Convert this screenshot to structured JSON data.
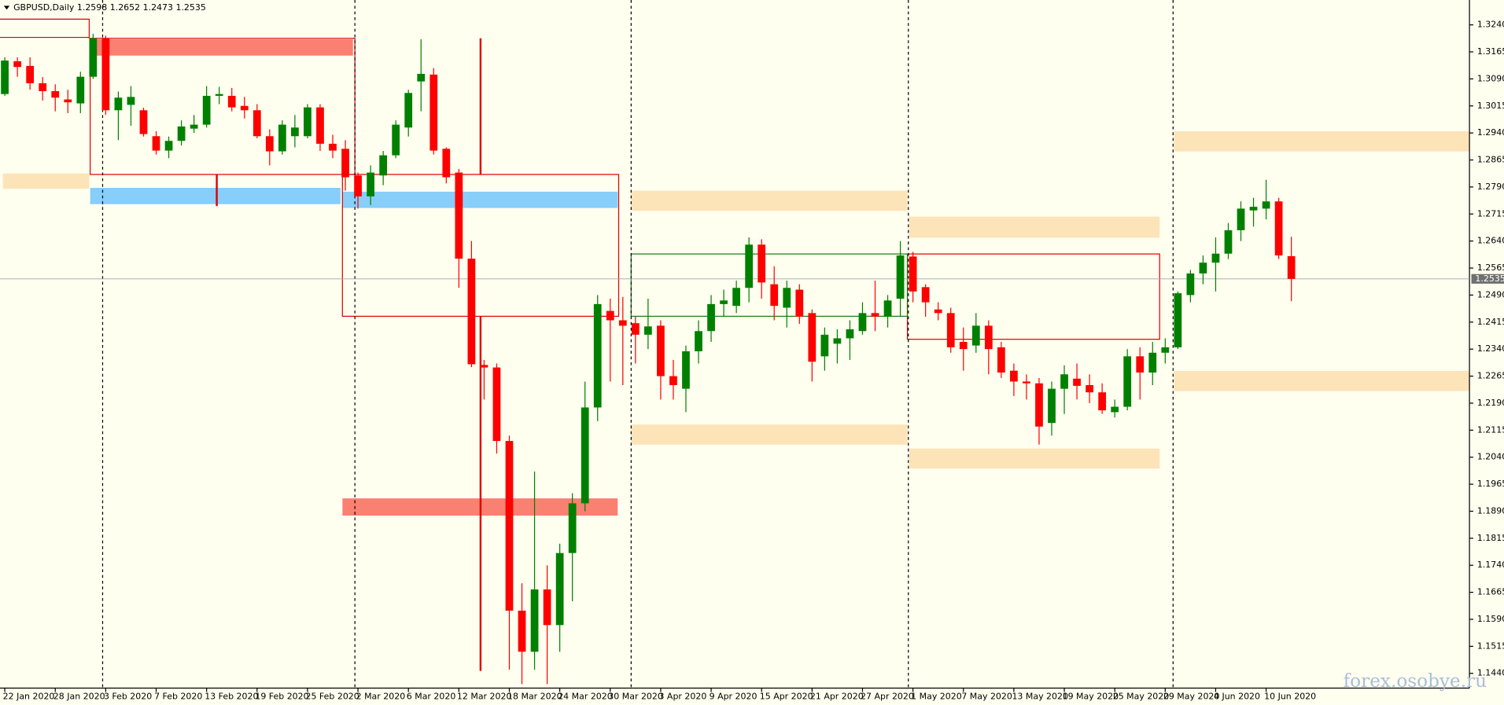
{
  "chart_data": {
    "type": "candlestick",
    "title": "GBPUSD,Daily  1.2598 1.2652 1.2473 1.2535",
    "watermark": "forex.osobye.ru",
    "categories": [
      "22 Jan 2020",
      null,
      null,
      null,
      "28 Jan 2020",
      null,
      null,
      null,
      "3 Feb 2020",
      null,
      null,
      null,
      "7 Feb 2020",
      null,
      null,
      null,
      "13 Feb 2020",
      null,
      null,
      null,
      "19 Feb 2020",
      null,
      null,
      null,
      "25 Feb 2020",
      null,
      null,
      null,
      "2 Mar 2020",
      null,
      null,
      null,
      "6 Mar 2020",
      null,
      null,
      null,
      "12 Mar 2020",
      null,
      null,
      null,
      "18 Mar 2020",
      null,
      null,
      null,
      "24 Mar 2020",
      null,
      null,
      null,
      "30 Mar 2020",
      null,
      null,
      null,
      "3 Apr 2020",
      null,
      null,
      null,
      "9 Apr 2020",
      null,
      null,
      null,
      "15 Apr 2020",
      null,
      null,
      null,
      "21 Apr 2020",
      null,
      null,
      null,
      "27 Apr 2020",
      null,
      null,
      null,
      "1 May 2020",
      null,
      null,
      null,
      "7 May 2020",
      null,
      null,
      null,
      "13 May 2020",
      null,
      null,
      null,
      "19 May 2020",
      null,
      null,
      null,
      "25 May 2020",
      null,
      null,
      null,
      "29 May 2020",
      null,
      null,
      null,
      "4 Jun 2020",
      null,
      null,
      null,
      "10 Jun 2020",
      null,
      null
    ],
    "open": [
      1.3048,
      1.3139,
      1.3126,
      1.3078,
      1.3056,
      1.3033,
      1.3022,
      1.3096,
      1.3203,
      1.3003,
      1.3018,
      1.3003,
      1.2931,
      1.2891,
      1.2918,
      1.2952,
      1.2963,
      1.3043,
      1.3043,
      1.3015,
      1.3003,
      1.2931,
      1.2889,
      1.2931,
      1.2931,
      1.3011,
      1.291,
      1.2896,
      1.2822,
      1.2764,
      1.2822,
      1.2878,
      1.2955,
      1.3083,
      1.3102,
      1.2896,
      1.283,
      1.2591,
      1.2296,
      1.2289,
      1.2085,
      1.1614,
      1.15,
      1.1673,
      1.1574,
      1.1774,
      1.1912,
      1.2178,
      1.2446,
      1.242,
      1.2412,
      1.238,
      1.2405,
      1.2265,
      1.223,
      1.2334,
      1.239,
      1.2465,
      1.246,
      1.251,
      1.263,
      1.252,
      1.2455,
      1.2505,
      1.244,
      1.232,
      1.2355,
      1.237,
      1.239,
      1.244,
      1.243,
      1.248,
      1.2597,
      1.2512,
      1.245,
      1.244,
      1.236,
      1.235,
      1.2405,
      1.2345,
      1.228,
      1.225,
      1.2245,
      1.2135,
      1.223,
      1.2258,
      1.224,
      1.222,
      1.2165,
      1.218,
      1.232,
      1.2275,
      1.233,
      1.2345,
      1.249,
      1.255,
      1.258,
      1.2605,
      1.267,
      1.2725,
      1.273,
      1.275,
      1.2598
    ],
    "high": [
      1.315,
      1.315,
      1.315,
      1.3095,
      1.3075,
      1.306,
      1.311,
      1.3215,
      1.321,
      1.3055,
      1.307,
      1.301,
      1.2945,
      1.293,
      1.2975,
      1.299,
      1.307,
      1.3068,
      1.3065,
      1.304,
      1.302,
      1.295,
      1.2975,
      1.299,
      1.302,
      1.302,
      1.2935,
      1.292,
      1.283,
      1.285,
      1.289,
      1.2975,
      1.306,
      1.32,
      1.312,
      1.29,
      1.284,
      1.264,
      1.231,
      1.23,
      1.21,
      1.169,
      1.2,
      1.174,
      1.18,
      1.194,
      1.225,
      1.249,
      1.248,
      1.2485,
      1.243,
      1.248,
      1.242,
      1.231,
      1.235,
      1.242,
      1.249,
      1.2505,
      1.253,
      1.265,
      1.2645,
      1.257,
      1.253,
      1.252,
      1.245,
      1.24,
      1.2395,
      1.242,
      1.247,
      1.253,
      1.249,
      1.264,
      1.261,
      1.252,
      1.247,
      1.2455,
      1.24,
      1.244,
      1.242,
      1.236,
      1.23,
      1.227,
      1.226,
      1.225,
      1.2295,
      1.23,
      1.227,
      1.2245,
      1.22,
      1.234,
      1.2345,
      1.236,
      1.237,
      1.25,
      1.256,
      1.26,
      1.265,
      1.269,
      1.275,
      1.276,
      1.281,
      1.276,
      1.2652
    ],
    "low": [
      1.3043,
      1.3096,
      1.306,
      1.303,
      1.3,
      1.2995,
      1.2995,
      1.309,
      1.299,
      1.292,
      1.296,
      1.293,
      1.288,
      1.287,
      1.2905,
      1.294,
      1.2955,
      1.302,
      1.3,
      1.298,
      1.2925,
      1.285,
      1.288,
      1.29,
      1.2925,
      1.289,
      1.287,
      1.278,
      1.273,
      1.274,
      1.2795,
      1.287,
      1.293,
      1.3,
      1.288,
      1.28,
      1.251,
      1.229,
      1.22,
      1.205,
      1.145,
      1.141,
      1.145,
      1.141,
      1.15,
      1.164,
      1.189,
      1.214,
      1.225,
      1.224,
      1.23,
      1.234,
      1.22,
      1.22,
      1.2165,
      1.23,
      1.236,
      1.243,
      1.244,
      1.247,
      1.248,
      1.242,
      1.24,
      1.241,
      1.225,
      1.228,
      1.23,
      1.231,
      1.238,
      1.239,
      1.24,
      1.243,
      1.247,
      1.243,
      1.242,
      1.233,
      1.228,
      1.233,
      1.227,
      1.226,
      1.221,
      1.22,
      1.2075,
      1.21,
      1.216,
      1.22,
      1.219,
      1.216,
      1.215,
      1.217,
      1.22,
      1.224,
      1.23,
      1.234,
      1.247,
      1.252,
      1.25,
      1.259,
      1.264,
      1.268,
      1.27,
      1.259,
      1.2473
    ],
    "close": [
      1.3141,
      1.3123,
      1.3078,
      1.3056,
      1.3038,
      1.3025,
      1.3096,
      1.3203,
      1.3003,
      1.3038,
      1.304,
      1.2937,
      1.2891,
      1.2918,
      1.2958,
      1.2963,
      1.3043,
      1.3048,
      1.3011,
      1.3003,
      1.2931,
      1.2889,
      1.2963,
      1.2955,
      1.3011,
      1.291,
      1.2891,
      1.2817,
      1.2764,
      1.283,
      1.2878,
      1.2963,
      1.3051,
      1.3104,
      1.2891,
      1.2817,
      1.2591,
      1.2298,
      1.2289,
      1.2085,
      1.1614,
      1.15,
      1.1673,
      1.1574,
      1.1774,
      1.1912,
      1.2178,
      1.2465,
      1.242,
      1.2405,
      1.238,
      1.2403,
      1.2265,
      1.224,
      1.2334,
      1.239,
      1.2465,
      1.2475,
      1.251,
      1.263,
      1.2525,
      1.246,
      1.251,
      1.243,
      1.2305,
      1.238,
      1.237,
      1.2395,
      1.244,
      1.243,
      1.2475,
      1.26,
      1.25,
      1.247,
      1.244,
      1.2345,
      1.234,
      1.2405,
      1.234,
      1.2275,
      1.225,
      1.2245,
      1.2125,
      1.223,
      1.227,
      1.2238,
      1.222,
      1.217,
      1.218,
      1.232,
      1.2275,
      1.233,
      1.2345,
      1.2495,
      1.255,
      1.258,
      1.2605,
      1.267,
      1.273,
      1.2735,
      1.275,
      1.26,
      1.2535
    ],
    "up_color": "#008000",
    "down_color": "#ff0000",
    "current_price": 1.2535,
    "ylim": [
      1.1399,
      1.3309
    ],
    "yticks": [
      {
        "value": 1.324,
        "label": "1.3240"
      },
      1.3165,
      {
        "value": 1.309,
        "label": "1.3090"
      },
      1.3015,
      {
        "value": 1.294,
        "label": "1.2940"
      },
      1.2865,
      {
        "value": 1.279,
        "label": "1.2790"
      },
      1.2715,
      {
        "value": 1.264,
        "label": "1.2640"
      },
      1.2565,
      {
        "value": 1.249,
        "label": "1.2490"
      },
      1.2415,
      {
        "value": 1.234,
        "label": "1.2340"
      },
      1.2265,
      {
        "value": 1.219,
        "label": "1.2190"
      },
      1.2115,
      {
        "value": 1.204,
        "label": "1.2040"
      },
      1.1965,
      {
        "value": 1.189,
        "label": "1.1890"
      },
      1.1815,
      {
        "value": 1.174,
        "label": "1.1740"
      },
      1.1665,
      {
        "value": 1.159,
        "label": "1.1590"
      },
      1.1515,
      {
        "value": 1.144,
        "label": "1.1440"
      }
    ]
  }
}
